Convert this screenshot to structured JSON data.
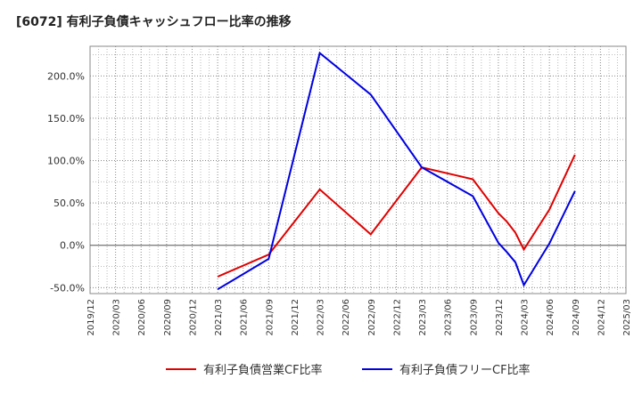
{
  "chart_data": {
    "type": "line",
    "title": "[6072]  有利子負債キャッシュフロー比率の推移",
    "xlabel": "",
    "ylabel": "",
    "ylim": [
      -57,
      235
    ],
    "x_ticks": [
      "2019/12",
      "2020/03",
      "2020/06",
      "2020/09",
      "2020/12",
      "2021/03",
      "2021/06",
      "2021/09",
      "2021/12",
      "2022/03",
      "2022/06",
      "2022/09",
      "2022/12",
      "2023/03",
      "2023/06",
      "2023/09",
      "2023/12",
      "2024/03",
      "2024/06",
      "2024/09",
      "2024/12",
      "2025/03"
    ],
    "y_ticks": [
      -50,
      0,
      50,
      100,
      150,
      200
    ],
    "y_tick_labels": [
      "-50.0%",
      "0.0%",
      "50.0%",
      "100.0%",
      "150.0%",
      "200.0%"
    ],
    "grid": true,
    "legend_position": "bottom",
    "series": [
      {
        "name": "有利子負債営業CF比率",
        "color": "#e00000",
        "points": [
          {
            "x": "2021/03",
            "y": -37
          },
          {
            "x": "2021/09",
            "y": -11
          },
          {
            "x": "2022/03",
            "y": 66
          },
          {
            "x": "2022/09",
            "y": 13
          },
          {
            "x": "2023/03",
            "y": 92
          },
          {
            "x": "2023/09",
            "y": 78
          },
          {
            "x": "2023/12",
            "y": 38
          },
          {
            "x": "2024/01",
            "y": 28
          },
          {
            "x": "2024/02",
            "y": 15
          },
          {
            "x": "2024/03",
            "y": -5
          },
          {
            "x": "2024/06",
            "y": 42
          },
          {
            "x": "2024/09",
            "y": 107
          }
        ]
      },
      {
        "name": "有利子負債フリーCF比率",
        "color": "#0000e0",
        "points": [
          {
            "x": "2021/03",
            "y": -52
          },
          {
            "x": "2021/09",
            "y": -16
          },
          {
            "x": "2022/03",
            "y": 227
          },
          {
            "x": "2022/09",
            "y": 178
          },
          {
            "x": "2023/03",
            "y": 92
          },
          {
            "x": "2023/09",
            "y": 58
          },
          {
            "x": "2023/12",
            "y": 3
          },
          {
            "x": "2024/01",
            "y": -8
          },
          {
            "x": "2024/02",
            "y": -20
          },
          {
            "x": "2024/03",
            "y": -47
          },
          {
            "x": "2024/06",
            "y": 2
          },
          {
            "x": "2024/09",
            "y": 64
          }
        ]
      }
    ]
  }
}
